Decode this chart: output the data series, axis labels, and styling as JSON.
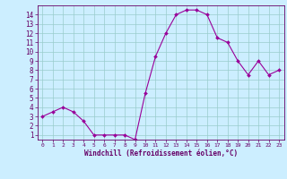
{
  "x": [
    0,
    1,
    2,
    3,
    4,
    5,
    6,
    7,
    8,
    9,
    10,
    11,
    12,
    13,
    14,
    15,
    16,
    17,
    18,
    19,
    20,
    21,
    22,
    23
  ],
  "y": [
    3,
    3.5,
    4,
    3.5,
    2.5,
    1,
    1,
    1,
    1,
    0.5,
    5.5,
    9.5,
    12,
    14,
    14.5,
    14.5,
    14,
    11.5,
    11,
    9,
    7.5,
    9,
    7.5,
    8
  ],
  "line_color": "#990099",
  "marker": "D",
  "marker_size": 2,
  "bg_color": "#cceeff",
  "grid_color": "#99cccc",
  "xlabel": "Windchill (Refroidissement éolien,°C)",
  "xlabel_color": "#660066",
  "axis_color": "#660066",
  "tick_color": "#660066",
  "ylim": [
    0.5,
    15
  ],
  "yticks": [
    1,
    2,
    3,
    4,
    5,
    6,
    7,
    8,
    9,
    10,
    11,
    12,
    13,
    14
  ],
  "xlim": [
    -0.5,
    23.5
  ],
  "xticks": [
    0,
    1,
    2,
    3,
    4,
    5,
    6,
    7,
    8,
    9,
    10,
    11,
    12,
    13,
    14,
    15,
    16,
    17,
    18,
    19,
    20,
    21,
    22,
    23
  ]
}
